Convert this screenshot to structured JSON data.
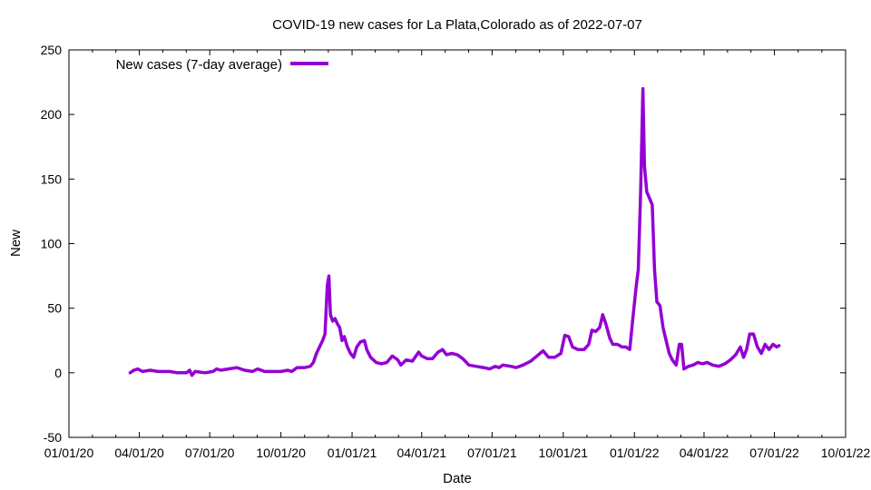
{
  "chart_data": {
    "type": "line",
    "title": "COVID-19 new cases for La Plata,Colorado as of 2022-07-07",
    "xlabel": "Date",
    "ylabel": "New",
    "xlim": [
      "2020-01-01",
      "2022-10-01"
    ],
    "ylim": [
      -50,
      250
    ],
    "x_ticks": [
      "01/01/20",
      "04/01/20",
      "07/01/20",
      "10/01/20",
      "01/01/21",
      "04/01/21",
      "07/01/21",
      "10/01/21",
      "01/01/22",
      "04/01/22",
      "07/01/22",
      "10/01/22"
    ],
    "y_ticks": [
      -50,
      0,
      50,
      100,
      150,
      200,
      250
    ],
    "grid": false,
    "legend_position": "top-left",
    "series": [
      {
        "name": "New cases (7-day average)",
        "color": "#9400d3",
        "points": [
          [
            "2020-03-20",
            0
          ],
          [
            "2020-03-25",
            2
          ],
          [
            "2020-03-30",
            3
          ],
          [
            "2020-04-05",
            1
          ],
          [
            "2020-04-15",
            2
          ],
          [
            "2020-04-25",
            1
          ],
          [
            "2020-05-10",
            1
          ],
          [
            "2020-05-20",
            0
          ],
          [
            "2020-06-01",
            0
          ],
          [
            "2020-06-05",
            2
          ],
          [
            "2020-06-08",
            -2
          ],
          [
            "2020-06-12",
            1
          ],
          [
            "2020-06-25",
            0
          ],
          [
            "2020-07-05",
            1
          ],
          [
            "2020-07-10",
            3
          ],
          [
            "2020-07-15",
            2
          ],
          [
            "2020-07-25",
            3
          ],
          [
            "2020-08-05",
            4
          ],
          [
            "2020-08-15",
            2
          ],
          [
            "2020-08-25",
            1
          ],
          [
            "2020-09-01",
            3
          ],
          [
            "2020-09-10",
            1
          ],
          [
            "2020-09-20",
            1
          ],
          [
            "2020-10-01",
            1
          ],
          [
            "2020-10-10",
            2
          ],
          [
            "2020-10-15",
            1
          ],
          [
            "2020-10-22",
            4
          ],
          [
            "2020-11-01",
            4
          ],
          [
            "2020-11-08",
            5
          ],
          [
            "2020-11-12",
            8
          ],
          [
            "2020-11-16",
            15
          ],
          [
            "2020-11-20",
            20
          ],
          [
            "2020-11-24",
            25
          ],
          [
            "2020-11-27",
            30
          ],
          [
            "2020-11-30",
            68
          ],
          [
            "2020-12-02",
            75
          ],
          [
            "2020-12-04",
            45
          ],
          [
            "2020-12-07",
            40
          ],
          [
            "2020-12-10",
            42
          ],
          [
            "2020-12-13",
            38
          ],
          [
            "2020-12-16",
            35
          ],
          [
            "2020-12-19",
            25
          ],
          [
            "2020-12-22",
            28
          ],
          [
            "2020-12-26",
            20
          ],
          [
            "2020-12-30",
            15
          ],
          [
            "2021-01-03",
            12
          ],
          [
            "2021-01-07",
            20
          ],
          [
            "2021-01-12",
            24
          ],
          [
            "2021-01-17",
            25
          ],
          [
            "2021-01-20",
            18
          ],
          [
            "2021-01-25",
            12
          ],
          [
            "2021-02-01",
            8
          ],
          [
            "2021-02-08",
            7
          ],
          [
            "2021-02-15",
            8
          ],
          [
            "2021-02-22",
            13
          ],
          [
            "2021-03-01",
            10
          ],
          [
            "2021-03-05",
            6
          ],
          [
            "2021-03-12",
            10
          ],
          [
            "2021-03-20",
            9
          ],
          [
            "2021-03-28",
            16
          ],
          [
            "2021-04-01",
            13
          ],
          [
            "2021-04-08",
            11
          ],
          [
            "2021-04-15",
            11
          ],
          [
            "2021-04-22",
            16
          ],
          [
            "2021-04-28",
            18
          ],
          [
            "2021-05-03",
            14
          ],
          [
            "2021-05-10",
            15
          ],
          [
            "2021-05-17",
            14
          ],
          [
            "2021-05-24",
            11
          ],
          [
            "2021-06-01",
            6
          ],
          [
            "2021-06-10",
            5
          ],
          [
            "2021-06-20",
            4
          ],
          [
            "2021-06-28",
            3
          ],
          [
            "2021-07-05",
            5
          ],
          [
            "2021-07-10",
            4
          ],
          [
            "2021-07-15",
            6
          ],
          [
            "2021-07-25",
            5
          ],
          [
            "2021-08-01",
            4
          ],
          [
            "2021-08-10",
            6
          ],
          [
            "2021-08-20",
            9
          ],
          [
            "2021-08-28",
            13
          ],
          [
            "2021-09-05",
            17
          ],
          [
            "2021-09-12",
            12
          ],
          [
            "2021-09-20",
            12
          ],
          [
            "2021-09-28",
            15
          ],
          [
            "2021-10-03",
            29
          ],
          [
            "2021-10-08",
            28
          ],
          [
            "2021-10-13",
            20
          ],
          [
            "2021-10-20",
            18
          ],
          [
            "2021-10-28",
            18
          ],
          [
            "2021-11-03",
            22
          ],
          [
            "2021-11-07",
            33
          ],
          [
            "2021-11-12",
            32
          ],
          [
            "2021-11-17",
            35
          ],
          [
            "2021-11-21",
            45
          ],
          [
            "2021-11-25",
            38
          ],
          [
            "2021-11-30",
            27
          ],
          [
            "2021-12-04",
            22
          ],
          [
            "2021-12-10",
            22
          ],
          [
            "2021-12-16",
            20
          ],
          [
            "2021-12-21",
            20
          ],
          [
            "2021-12-26",
            18
          ],
          [
            "2021-12-30",
            42
          ],
          [
            "2022-01-03",
            65
          ],
          [
            "2022-01-06",
            80
          ],
          [
            "2022-01-09",
            140
          ],
          [
            "2022-01-12",
            220
          ],
          [
            "2022-01-14",
            160
          ],
          [
            "2022-01-17",
            140
          ],
          [
            "2022-01-20",
            136
          ],
          [
            "2022-01-24",
            130
          ],
          [
            "2022-01-27",
            80
          ],
          [
            "2022-01-30",
            55
          ],
          [
            "2022-02-03",
            52
          ],
          [
            "2022-02-07",
            35
          ],
          [
            "2022-02-11",
            25
          ],
          [
            "2022-02-15",
            15
          ],
          [
            "2022-02-19",
            10
          ],
          [
            "2022-02-24",
            6
          ],
          [
            "2022-02-28",
            22
          ],
          [
            "2022-03-03",
            22
          ],
          [
            "2022-03-06",
            3
          ],
          [
            "2022-03-12",
            5
          ],
          [
            "2022-03-18",
            6
          ],
          [
            "2022-03-24",
            8
          ],
          [
            "2022-03-30",
            7
          ],
          [
            "2022-04-05",
            8
          ],
          [
            "2022-04-12",
            6
          ],
          [
            "2022-04-20",
            5
          ],
          [
            "2022-04-28",
            7
          ],
          [
            "2022-05-05",
            10
          ],
          [
            "2022-05-12",
            14
          ],
          [
            "2022-05-18",
            20
          ],
          [
            "2022-05-22",
            12
          ],
          [
            "2022-05-26",
            18
          ],
          [
            "2022-05-30",
            30
          ],
          [
            "2022-06-04",
            30
          ],
          [
            "2022-06-09",
            20
          ],
          [
            "2022-06-14",
            15
          ],
          [
            "2022-06-19",
            22
          ],
          [
            "2022-06-24",
            18
          ],
          [
            "2022-06-29",
            22
          ],
          [
            "2022-07-04",
            20
          ],
          [
            "2022-07-07",
            21
          ]
        ]
      }
    ]
  }
}
